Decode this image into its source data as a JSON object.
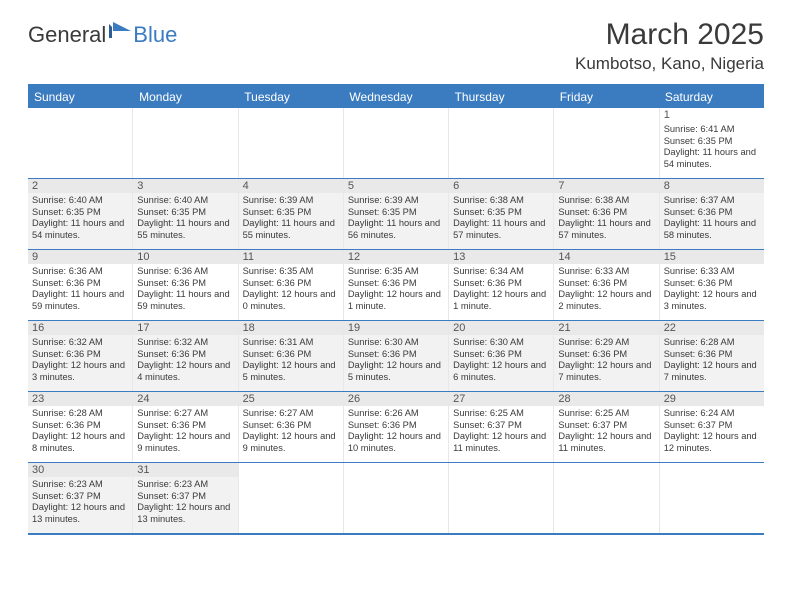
{
  "logo": {
    "word1": "General",
    "word2": "Blue",
    "brand_color": "#3b7bbf"
  },
  "header": {
    "title": "March 2025",
    "location": "Kumbotso, Kano, Nigeria"
  },
  "colors": {
    "header_bg": "#3b7bbf",
    "border": "#3b7bbf",
    "shade": "#f2f2f2",
    "daynum_bg": "#e9e9e9",
    "text": "#333333"
  },
  "day_names": [
    "Sunday",
    "Monday",
    "Tuesday",
    "Wednesday",
    "Thursday",
    "Friday",
    "Saturday"
  ],
  "weeks": [
    [
      {
        "empty": true
      },
      {
        "empty": true
      },
      {
        "empty": true
      },
      {
        "empty": true
      },
      {
        "empty": true
      },
      {
        "empty": true
      },
      {
        "day": 1,
        "sunrise": "6:41 AM",
        "sunset": "6:35 PM",
        "daylight": "11 hours and 54 minutes.",
        "shade": false,
        "plain_daynum": true
      }
    ],
    [
      {
        "day": 2,
        "sunrise": "6:40 AM",
        "sunset": "6:35 PM",
        "daylight": "11 hours and 54 minutes.",
        "shade": true
      },
      {
        "day": 3,
        "sunrise": "6:40 AM",
        "sunset": "6:35 PM",
        "daylight": "11 hours and 55 minutes.",
        "shade": true
      },
      {
        "day": 4,
        "sunrise": "6:39 AM",
        "sunset": "6:35 PM",
        "daylight": "11 hours and 55 minutes.",
        "shade": true
      },
      {
        "day": 5,
        "sunrise": "6:39 AM",
        "sunset": "6:35 PM",
        "daylight": "11 hours and 56 minutes.",
        "shade": true
      },
      {
        "day": 6,
        "sunrise": "6:38 AM",
        "sunset": "6:35 PM",
        "daylight": "11 hours and 57 minutes.",
        "shade": true
      },
      {
        "day": 7,
        "sunrise": "6:38 AM",
        "sunset": "6:36 PM",
        "daylight": "11 hours and 57 minutes.",
        "shade": true
      },
      {
        "day": 8,
        "sunrise": "6:37 AM",
        "sunset": "6:36 PM",
        "daylight": "11 hours and 58 minutes.",
        "shade": true
      }
    ],
    [
      {
        "day": 9,
        "sunrise": "6:36 AM",
        "sunset": "6:36 PM",
        "daylight": "11 hours and 59 minutes.",
        "shade": false
      },
      {
        "day": 10,
        "sunrise": "6:36 AM",
        "sunset": "6:36 PM",
        "daylight": "11 hours and 59 minutes.",
        "shade": false
      },
      {
        "day": 11,
        "sunrise": "6:35 AM",
        "sunset": "6:36 PM",
        "daylight": "12 hours and 0 minutes.",
        "shade": false
      },
      {
        "day": 12,
        "sunrise": "6:35 AM",
        "sunset": "6:36 PM",
        "daylight": "12 hours and 1 minute.",
        "shade": false
      },
      {
        "day": 13,
        "sunrise": "6:34 AM",
        "sunset": "6:36 PM",
        "daylight": "12 hours and 1 minute.",
        "shade": false
      },
      {
        "day": 14,
        "sunrise": "6:33 AM",
        "sunset": "6:36 PM",
        "daylight": "12 hours and 2 minutes.",
        "shade": false
      },
      {
        "day": 15,
        "sunrise": "6:33 AM",
        "sunset": "6:36 PM",
        "daylight": "12 hours and 3 minutes.",
        "shade": false
      }
    ],
    [
      {
        "day": 16,
        "sunrise": "6:32 AM",
        "sunset": "6:36 PM",
        "daylight": "12 hours and 3 minutes.",
        "shade": true
      },
      {
        "day": 17,
        "sunrise": "6:32 AM",
        "sunset": "6:36 PM",
        "daylight": "12 hours and 4 minutes.",
        "shade": true
      },
      {
        "day": 18,
        "sunrise": "6:31 AM",
        "sunset": "6:36 PM",
        "daylight": "12 hours and 5 minutes.",
        "shade": true
      },
      {
        "day": 19,
        "sunrise": "6:30 AM",
        "sunset": "6:36 PM",
        "daylight": "12 hours and 5 minutes.",
        "shade": true
      },
      {
        "day": 20,
        "sunrise": "6:30 AM",
        "sunset": "6:36 PM",
        "daylight": "12 hours and 6 minutes.",
        "shade": true
      },
      {
        "day": 21,
        "sunrise": "6:29 AM",
        "sunset": "6:36 PM",
        "daylight": "12 hours and 7 minutes.",
        "shade": true
      },
      {
        "day": 22,
        "sunrise": "6:28 AM",
        "sunset": "6:36 PM",
        "daylight": "12 hours and 7 minutes.",
        "shade": true
      }
    ],
    [
      {
        "day": 23,
        "sunrise": "6:28 AM",
        "sunset": "6:36 PM",
        "daylight": "12 hours and 8 minutes.",
        "shade": false
      },
      {
        "day": 24,
        "sunrise": "6:27 AM",
        "sunset": "6:36 PM",
        "daylight": "12 hours and 9 minutes.",
        "shade": false
      },
      {
        "day": 25,
        "sunrise": "6:27 AM",
        "sunset": "6:36 PM",
        "daylight": "12 hours and 9 minutes.",
        "shade": false
      },
      {
        "day": 26,
        "sunrise": "6:26 AM",
        "sunset": "6:36 PM",
        "daylight": "12 hours and 10 minutes.",
        "shade": false
      },
      {
        "day": 27,
        "sunrise": "6:25 AM",
        "sunset": "6:37 PM",
        "daylight": "12 hours and 11 minutes.",
        "shade": false
      },
      {
        "day": 28,
        "sunrise": "6:25 AM",
        "sunset": "6:37 PM",
        "daylight": "12 hours and 11 minutes.",
        "shade": false
      },
      {
        "day": 29,
        "sunrise": "6:24 AM",
        "sunset": "6:37 PM",
        "daylight": "12 hours and 12 minutes.",
        "shade": false
      }
    ],
    [
      {
        "day": 30,
        "sunrise": "6:23 AM",
        "sunset": "6:37 PM",
        "daylight": "12 hours and 13 minutes.",
        "shade": true
      },
      {
        "day": 31,
        "sunrise": "6:23 AM",
        "sunset": "6:37 PM",
        "daylight": "12 hours and 13 minutes.",
        "shade": true
      },
      {
        "empty": true
      },
      {
        "empty": true
      },
      {
        "empty": true
      },
      {
        "empty": true
      },
      {
        "empty": true
      }
    ]
  ],
  "field_labels": {
    "sunrise": "Sunrise:",
    "sunset": "Sunset:",
    "daylight": "Daylight:"
  }
}
